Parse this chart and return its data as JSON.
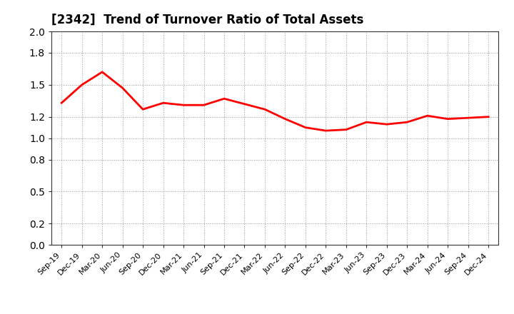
{
  "title": "[2342]  Trend of Turnover Ratio of Total Assets",
  "line_color": "#FF0000",
  "line_width": 2.0,
  "background_color": "#FFFFFF",
  "grid_color": "#999999",
  "ylim": [
    0.0,
    2.0
  ],
  "yticks": [
    0.0,
    0.2,
    0.5,
    0.8,
    1.0,
    1.2,
    1.5,
    1.8,
    2.0
  ],
  "labels": [
    "Sep-19",
    "Dec-19",
    "Mar-20",
    "Jun-20",
    "Sep-20",
    "Dec-20",
    "Mar-21",
    "Jun-21",
    "Sep-21",
    "Dec-21",
    "Mar-22",
    "Jun-22",
    "Sep-22",
    "Dec-22",
    "Mar-23",
    "Jun-23",
    "Sep-23",
    "Dec-23",
    "Mar-24",
    "Jun-24",
    "Sep-24",
    "Dec-24"
  ],
  "values": [
    1.33,
    1.5,
    1.62,
    1.47,
    1.27,
    1.33,
    1.31,
    1.31,
    1.37,
    1.32,
    1.27,
    1.18,
    1.1,
    1.07,
    1.08,
    1.15,
    1.13,
    1.15,
    1.21,
    1.18,
    1.19,
    1.2
  ]
}
